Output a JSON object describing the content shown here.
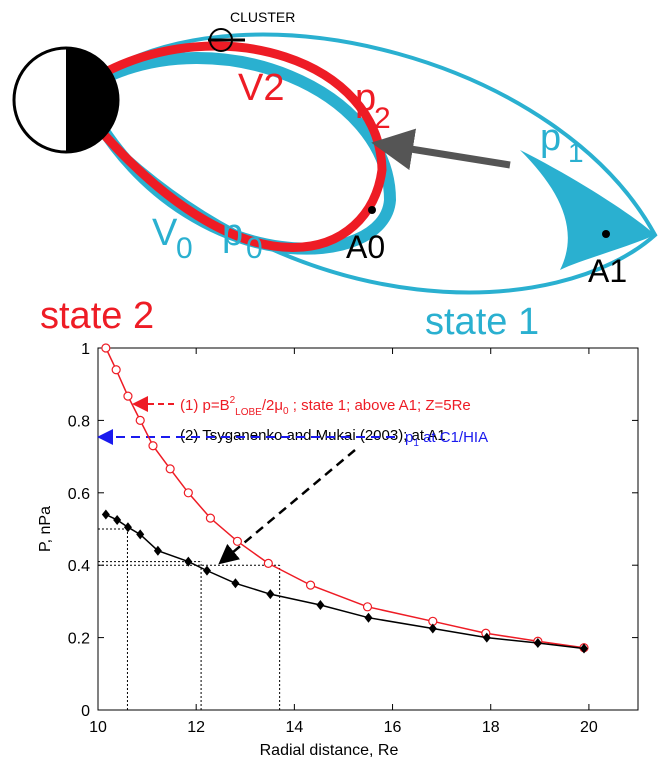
{
  "diagram": {
    "cluster": "CLUSTER",
    "v2": "V2",
    "p2": "p",
    "p2_sub": "2",
    "p1": "p",
    "p1_sub": "1",
    "v0": "V",
    "v0_sub": "0",
    "p0": "p",
    "p0_sub": "0",
    "a0": "A0",
    "a1": "A1",
    "state2": "state 2",
    "state1": "state 1"
  },
  "chart_data": {
    "type": "line",
    "xlabel": "Radial distance, Re",
    "ylabel": "P, nPa",
    "xlim": [
      10,
      21
    ],
    "ylim": [
      0,
      1
    ],
    "xticks": [
      10,
      12,
      14,
      16,
      18,
      20
    ],
    "yticks": [
      0,
      0.2,
      0.4,
      0.6,
      0.8,
      1
    ],
    "series": [
      {
        "color": "#ee1c25",
        "marker": "circle",
        "x": [
          10.16,
          10.37,
          10.61,
          10.86,
          11.12,
          11.47,
          11.84,
          12.29,
          12.84,
          13.47,
          14.33,
          15.49,
          16.82,
          17.9,
          18.96,
          19.9
        ],
        "values": [
          1.0,
          0.94,
          0.867,
          0.8,
          0.73,
          0.666,
          0.6,
          0.53,
          0.466,
          0.405,
          0.345,
          0.285,
          0.245,
          0.212,
          0.19,
          0.172
        ]
      },
      {
        "color": "#000000",
        "marker": "diamond",
        "x": [
          10.16,
          10.39,
          10.61,
          10.86,
          11.22,
          11.84,
          12.22,
          12.8,
          13.51,
          14.53,
          15.51,
          16.82,
          17.92,
          18.96,
          19.9
        ],
        "values": [
          0.54,
          0.525,
          0.505,
          0.485,
          0.44,
          0.41,
          0.385,
          0.35,
          0.32,
          0.29,
          0.255,
          0.225,
          0.2,
          0.185,
          0.17
        ]
      }
    ],
    "guides": [
      {
        "x": 10.6,
        "y": 0.5
      },
      {
        "x": 12.1,
        "y": 0.41
      },
      {
        "x": 13.7,
        "y": 0.4
      }
    ],
    "annotation1": [
      "(1) p=B",
      "2",
      "LOBE",
      "/2μ",
      "0",
      " ; state 1; above A1; Z=5Re"
    ],
    "annotation2": "(2) Tsyganenko and Mukai (2003); at A1",
    "annotation3": [
      "p",
      "1",
      " at C1/HIA"
    ]
  }
}
